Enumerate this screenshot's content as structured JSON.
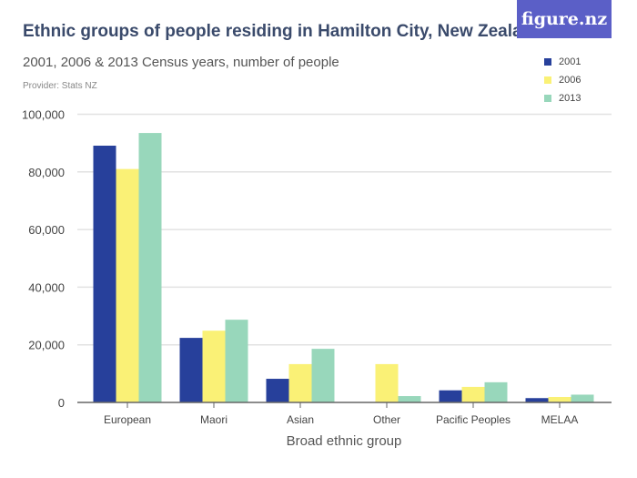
{
  "header": {
    "title": "Ethnic groups of people residing in Hamilton City, New Zealand",
    "subtitle": "2001, 2006 & 2013 Census years, number of people",
    "provider": "Provider: Stats NZ",
    "logo": "figure.nz"
  },
  "chart_data": {
    "type": "bar",
    "title": "Ethnic groups of people residing in Hamilton City, New Zealand",
    "subtitle": "2001, 2006 & 2013 Census years, number of people",
    "xlabel": "Broad ethnic group",
    "ylabel": "",
    "ylim": [
      0,
      100000
    ],
    "yticks": [
      0,
      20000,
      40000,
      60000,
      80000,
      100000
    ],
    "ytick_labels": [
      "0",
      "20,000",
      "40,000",
      "60,000",
      "80,000",
      "100,000"
    ],
    "grid": true,
    "legend": "top-right",
    "categories": [
      "European",
      "Maori",
      "Asian",
      "Other",
      "Pacific Peoples",
      "MELAA"
    ],
    "series": [
      {
        "name": "2001",
        "color": "#27409b",
        "values": [
          89100,
          22400,
          8200,
          0,
          4200,
          1500
        ]
      },
      {
        "name": "2006",
        "color": "#faf176",
        "values": [
          81000,
          24900,
          13300,
          13300,
          5400,
          1900
        ]
      },
      {
        "name": "2013",
        "color": "#98d7bb",
        "values": [
          93500,
          28700,
          18600,
          2200,
          7000,
          2700
        ]
      }
    ]
  }
}
